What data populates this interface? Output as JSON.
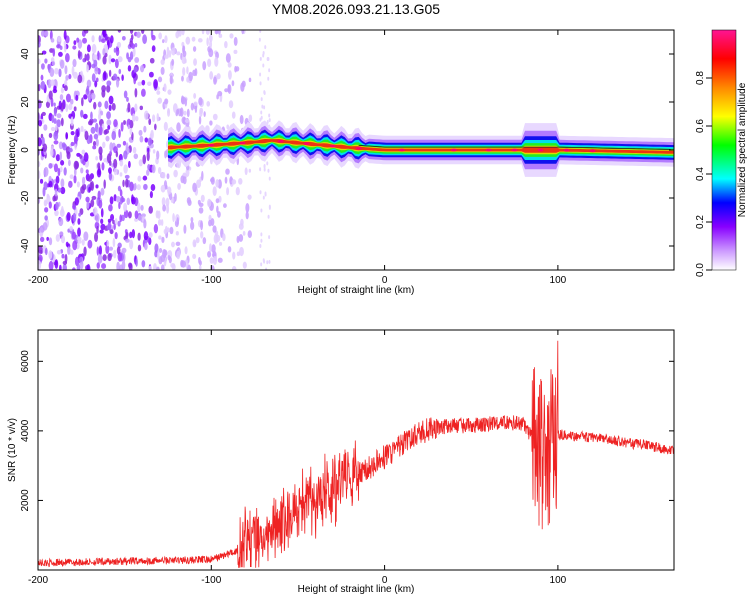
{
  "title": "YM08.2026.093.21.13.G05",
  "chart_data": [
    {
      "type": "heatmap",
      "xlabel": "Height of straight line (km)",
      "ylabel": "Frequency (Hz)",
      "xlim": [
        -200,
        167
      ],
      "ylim": [
        -50,
        50
      ],
      "xticks": [
        -200,
        -100,
        0,
        100
      ],
      "yticks": [
        -40,
        -20,
        0,
        20,
        40
      ],
      "colorbar": {
        "label": "Normalized spectral amplitude",
        "range": [
          0,
          1
        ],
        "ticks": [
          0.0,
          0.2,
          0.4,
          0.6,
          0.8
        ],
        "colors": [
          "#ffffff",
          "#8800ff",
          "#0000ff",
          "#00ffff",
          "#00ff00",
          "#ffff00",
          "#ff8800",
          "#ff0000",
          "#ff00aa"
        ]
      },
      "ridge": [
        {
          "x": -125,
          "y": 1
        },
        {
          "x": -100,
          "y": 2
        },
        {
          "x": -80,
          "y": 3
        },
        {
          "x": -65,
          "y": 4
        },
        {
          "x": -50,
          "y": 3
        },
        {
          "x": -35,
          "y": 2
        },
        {
          "x": -20,
          "y": 1
        },
        {
          "x": 0,
          "y": 0
        },
        {
          "x": 50,
          "y": 0
        },
        {
          "x": 100,
          "y": 0
        },
        {
          "x": 167,
          "y": -1
        }
      ],
      "noise_region": {
        "x_from": -200,
        "x_to": -85
      }
    },
    {
      "type": "line",
      "xlabel": "Height of straight line (km)",
      "ylabel": "SNR (10 * v/v)",
      "xlim": [
        -200,
        167
      ],
      "ylim": [
        0,
        6900
      ],
      "xticks": [
        -200,
        -100,
        0,
        100
      ],
      "yticks": [
        2000,
        4000,
        6000
      ],
      "color": "#ee2222",
      "x": [
        -200,
        -150,
        -100,
        -85,
        -75,
        -60,
        -50,
        -40,
        -30,
        -20,
        -10,
        0,
        10,
        20,
        30,
        40,
        50,
        60,
        70,
        80,
        85,
        90,
        95,
        100,
        110,
        120,
        130,
        140,
        150,
        160,
        167
      ],
      "y": [
        200,
        250,
        300,
        550,
        900,
        1500,
        1900,
        2100,
        2300,
        2600,
        2900,
        3250,
        3600,
        3950,
        4100,
        4150,
        4150,
        4200,
        4250,
        4200,
        3800,
        3500,
        3500,
        3900,
        3850,
        3800,
        3750,
        3650,
        3600,
        3500,
        3450
      ]
    }
  ]
}
